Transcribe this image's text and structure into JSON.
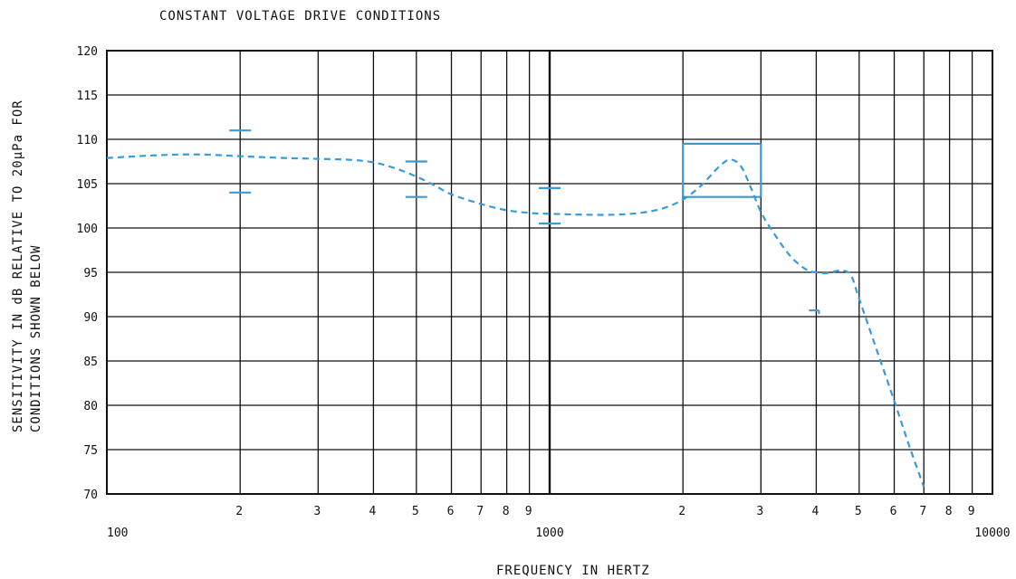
{
  "chart_data": {
    "type": "line",
    "title": "CONSTANT VOLTAGE DRIVE CONDITIONS",
    "xlabel": "FREQUENCY IN HERTZ",
    "ylabel_lines": [
      "SENSITIVITY IN dB RELATIVE TO 20µPa FOR",
      "CONDITIONS SHOWN BELOW"
    ],
    "x_scale": "log",
    "xlim": [
      100,
      10000
    ],
    "ylim": [
      70,
      120
    ],
    "grid": true,
    "x_major_ticks": [
      {
        "value": 100,
        "label": "100"
      },
      {
        "value": 1000,
        "label": "1000"
      },
      {
        "value": 10000,
        "label": "10000"
      }
    ],
    "x_minor_ticks": [
      {
        "value": 200,
        "label": "2"
      },
      {
        "value": 300,
        "label": "3"
      },
      {
        "value": 400,
        "label": "4"
      },
      {
        "value": 500,
        "label": "5"
      },
      {
        "value": 600,
        "label": "6"
      },
      {
        "value": 700,
        "label": "7"
      },
      {
        "value": 800,
        "label": "8"
      },
      {
        "value": 900,
        "label": "9"
      },
      {
        "value": 2000,
        "label": "2"
      },
      {
        "value": 3000,
        "label": "3"
      },
      {
        "value": 4000,
        "label": "4"
      },
      {
        "value": 5000,
        "label": "5"
      },
      {
        "value": 6000,
        "label": "6"
      },
      {
        "value": 7000,
        "label": "7"
      },
      {
        "value": 8000,
        "label": "8"
      },
      {
        "value": 9000,
        "label": "9"
      }
    ],
    "y_ticks": [
      {
        "value": 120,
        "label": "120"
      },
      {
        "value": 115,
        "label": "115"
      },
      {
        "value": 110,
        "label": "110"
      },
      {
        "value": 105,
        "label": "105"
      },
      {
        "value": 100,
        "label": "100"
      },
      {
        "value": 95,
        "label": "95"
      },
      {
        "value": 90,
        "label": "90"
      },
      {
        "value": 85,
        "label": "85"
      },
      {
        "value": 80,
        "label": "80"
      },
      {
        "value": 75,
        "label": "75"
      },
      {
        "value": 70,
        "label": "70"
      }
    ],
    "series": [
      {
        "style": "dashed",
        "color": "#3a9ad9",
        "points": [
          [
            100,
            107.9
          ],
          [
            130,
            108.2
          ],
          [
            160,
            108.3
          ],
          [
            200,
            108.1
          ],
          [
            250,
            107.9
          ],
          [
            300,
            107.8
          ],
          [
            350,
            107.7
          ],
          [
            400,
            107.4
          ],
          [
            450,
            106.7
          ],
          [
            500,
            105.8
          ],
          [
            550,
            104.8
          ],
          [
            600,
            103.8
          ],
          [
            700,
            102.7
          ],
          [
            800,
            102.0
          ],
          [
            900,
            101.7
          ],
          [
            1000,
            101.6
          ],
          [
            1200,
            101.5
          ],
          [
            1400,
            101.5
          ],
          [
            1600,
            101.7
          ],
          [
            1800,
            102.2
          ],
          [
            2000,
            103.2
          ],
          [
            2200,
            104.8
          ],
          [
            2400,
            106.8
          ],
          [
            2550,
            107.7
          ],
          [
            2700,
            107.0
          ],
          [
            2850,
            104.5
          ],
          [
            3000,
            101.8
          ],
          [
            3200,
            99.5
          ],
          [
            3500,
            96.8
          ],
          [
            3800,
            95.3
          ],
          [
            4000,
            95.0
          ],
          [
            4200,
            94.9
          ],
          [
            4400,
            95.1
          ],
          [
            4600,
            95.2
          ],
          [
            4800,
            94.6
          ],
          [
            5000,
            92.0
          ],
          [
            5500,
            86.0
          ],
          [
            6000,
            80.5
          ],
          [
            6500,
            75.3
          ],
          [
            7000,
            70.8
          ]
        ]
      }
    ],
    "tolerance_markers": [
      {
        "x": 200,
        "y": 111
      },
      {
        "x": 200,
        "y": 104
      },
      {
        "x": 500,
        "y": 107.5
      },
      {
        "x": 500,
        "y": 103.5
      },
      {
        "x": 1000,
        "y": 104.5
      },
      {
        "x": 1000,
        "y": 100.5
      },
      {
        "x": 4000,
        "y": 90.5,
        "half": true
      }
    ],
    "tolerance_box": {
      "x": [
        2000,
        3000
      ],
      "y": [
        103.5,
        109.5
      ]
    }
  }
}
